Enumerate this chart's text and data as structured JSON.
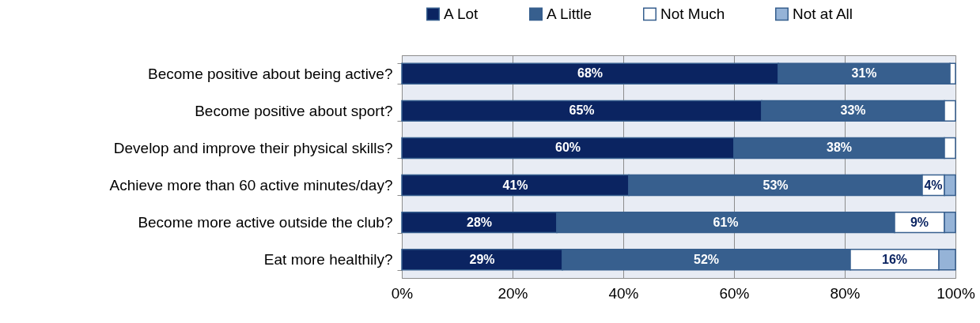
{
  "chart_data": {
    "type": "bar",
    "orientation": "horizontal",
    "stacked": true,
    "legend": "top",
    "grid": "x",
    "categories": [
      "Become positive about being active?",
      "Become positive about sport?",
      "Develop and improve their physical skills?",
      "Achieve more than 60 active minutes/day?",
      "Become more active outside the club?",
      "Eat more healthily?"
    ],
    "xlim": [
      0,
      100
    ],
    "xticks": [
      {
        "value": 0,
        "label": "0%"
      },
      {
        "value": 20,
        "label": "20%"
      },
      {
        "value": 40,
        "label": "40%"
      },
      {
        "value": 60,
        "label": "60%"
      },
      {
        "value": 80,
        "label": "80%"
      },
      {
        "value": 100,
        "label": "100%"
      }
    ],
    "series": [
      {
        "name": "A Lot",
        "color": "#0b2461",
        "values": [
          68,
          65,
          60,
          41,
          28,
          29
        ],
        "value_labels": [
          "68%",
          "65%",
          "60%",
          "41%",
          "28%",
          "29%"
        ]
      },
      {
        "name": "A Little",
        "color": "#375f8e",
        "values": [
          31,
          33,
          38,
          53,
          61,
          52
        ],
        "value_labels": [
          "31%",
          "33%",
          "38%",
          "53%",
          "61%",
          "52%"
        ]
      },
      {
        "name": "Not Much",
        "color": "#ffffff",
        "values": [
          1,
          2,
          2,
          4,
          9,
          16
        ],
        "value_labels": [
          null,
          null,
          null,
          "4%",
          "9%",
          "16%"
        ]
      },
      {
        "name": "Not at All",
        "color": "#95b3d7",
        "values": [
          0,
          0,
          0,
          2,
          2,
          3
        ],
        "value_labels": [
          null,
          null,
          null,
          null,
          null,
          null
        ]
      }
    ]
  }
}
